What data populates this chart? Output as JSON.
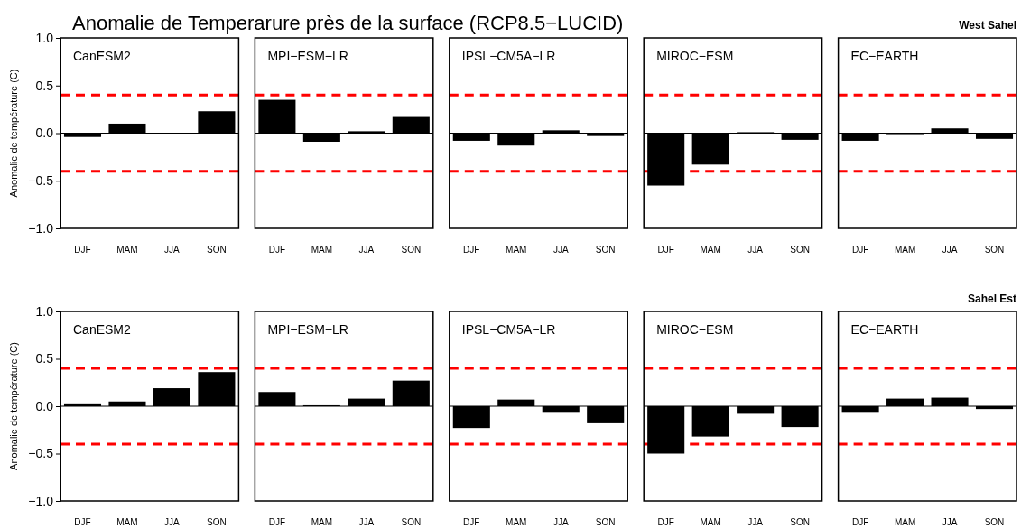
{
  "chart_data": [
    {
      "type": "bar",
      "title": "CanESM2",
      "annotations": [
        "Anomalie de Temperarure près de la surface    (RCP8.5−LUCID)"
      ],
      "ylabel": "Anomalie de température (C)",
      "categories": [
        "DJF",
        "MAM",
        "JJA",
        "SON"
      ],
      "values": [
        -0.04,
        0.1,
        0,
        0.23
      ],
      "color": "#000000",
      "ylim": [
        -1,
        1
      ],
      "yticks": [
        {
          "value": -1,
          "label": "−1.0"
        },
        {
          "value": -0.5,
          "label": "−0.5"
        },
        {
          "value": 0,
          "label": "0.0"
        },
        {
          "value": 0.5,
          "label": "0.5"
        },
        {
          "value": 1,
          "label": "1.0"
        }
      ],
      "ref_lines": [
        {
          "axis": "y",
          "value": 0.4,
          "color": "#ff0000",
          "line_style": "dashed"
        },
        {
          "axis": "y",
          "value": -0.4,
          "color": "#ff0000",
          "line_style": "dashed"
        }
      ]
    },
    {
      "type": "bar",
      "title": "MPI−ESM−LR",
      "categories": [
        "DJF",
        "MAM",
        "JJA",
        "SON"
      ],
      "values": [
        0.35,
        -0.09,
        0.02,
        0.17
      ],
      "color": "#000000",
      "ylim": [
        -1,
        1
      ],
      "tick_labels": "x",
      "ref_lines": [
        {
          "axis": "y",
          "value": 0.4,
          "color": "#ff0000",
          "line_style": "dashed"
        },
        {
          "axis": "y",
          "value": -0.4,
          "color": "#ff0000",
          "line_style": "dashed"
        }
      ]
    },
    {
      "type": "bar",
      "title": "IPSL−CM5A−LR",
      "categories": [
        "DJF",
        "MAM",
        "JJA",
        "SON"
      ],
      "values": [
        -0.08,
        -0.13,
        0.03,
        -0.03
      ],
      "color": "#000000",
      "ylim": [
        -1,
        1
      ],
      "tick_labels": "x",
      "ref_lines": [
        {
          "axis": "y",
          "value": 0.4,
          "color": "#ff0000",
          "line_style": "dashed"
        },
        {
          "axis": "y",
          "value": -0.4,
          "color": "#ff0000",
          "line_style": "dashed"
        }
      ]
    },
    {
      "type": "bar",
      "title": "MIROC−ESM",
      "categories": [
        "DJF",
        "MAM",
        "JJA",
        "SON"
      ],
      "values": [
        -0.55,
        -0.33,
        0.01,
        -0.07
      ],
      "color": "#000000",
      "ylim": [
        -1,
        1
      ],
      "tick_labels": "x",
      "ref_lines": [
        {
          "axis": "y",
          "value": 0.4,
          "color": "#ff0000",
          "line_style": "dashed"
        },
        {
          "axis": "y",
          "value": -0.4,
          "color": "#ff0000",
          "line_style": "dashed"
        }
      ]
    },
    {
      "type": "bar",
      "title": "EC−EARTH",
      "annotations": [
        "West Sahel"
      ],
      "categories": [
        "DJF",
        "MAM",
        "JJA",
        "SON"
      ],
      "values": [
        -0.08,
        -0.01,
        0.05,
        -0.06
      ],
      "color": "#000000",
      "ylim": [
        -1,
        1
      ],
      "tick_labels": "x",
      "ref_lines": [
        {
          "axis": "y",
          "value": 0.4,
          "color": "#ff0000",
          "line_style": "dashed"
        },
        {
          "axis": "y",
          "value": -0.4,
          "color": "#ff0000",
          "line_style": "dashed"
        }
      ]
    },
    {
      "type": "bar",
      "title": "CanESM2",
      "ylabel": "Anomalie de température (C)",
      "categories": [
        "DJF",
        "MAM",
        "JJA",
        "SON"
      ],
      "values": [
        0.03,
        0.05,
        0.19,
        0.36
      ],
      "color": "#000000",
      "ylim": [
        -1,
        1
      ],
      "yticks": [
        {
          "value": -1,
          "label": "−1.0"
        },
        {
          "value": -0.5,
          "label": "−0.5"
        },
        {
          "value": 0,
          "label": "0.0"
        },
        {
          "value": 0.5,
          "label": "0.5"
        },
        {
          "value": 1,
          "label": "1.0"
        }
      ],
      "ref_lines": [
        {
          "axis": "y",
          "value": 0.4,
          "color": "#ff0000",
          "line_style": "dashed"
        },
        {
          "axis": "y",
          "value": -0.4,
          "color": "#ff0000",
          "line_style": "dashed"
        }
      ]
    },
    {
      "type": "bar",
      "title": "MPI−ESM−LR",
      "categories": [
        "DJF",
        "MAM",
        "JJA",
        "SON"
      ],
      "values": [
        0.15,
        0.01,
        0.08,
        0.27
      ],
      "color": "#000000",
      "ylim": [
        -1,
        1
      ],
      "tick_labels": "x",
      "ref_lines": [
        {
          "axis": "y",
          "value": 0.4,
          "color": "#ff0000",
          "line_style": "dashed"
        },
        {
          "axis": "y",
          "value": -0.4,
          "color": "#ff0000",
          "line_style": "dashed"
        }
      ]
    },
    {
      "type": "bar",
      "title": "IPSL−CM5A−LR",
      "categories": [
        "DJF",
        "MAM",
        "JJA",
        "SON"
      ],
      "values": [
        -0.23,
        0.07,
        -0.06,
        -0.18
      ],
      "color": "#000000",
      "ylim": [
        -1,
        1
      ],
      "tick_labels": "x",
      "ref_lines": [
        {
          "axis": "y",
          "value": 0.4,
          "color": "#ff0000",
          "line_style": "dashed"
        },
        {
          "axis": "y",
          "value": -0.4,
          "color": "#ff0000",
          "line_style": "dashed"
        }
      ]
    },
    {
      "type": "bar",
      "title": "MIROC−ESM",
      "categories": [
        "DJF",
        "MAM",
        "JJA",
        "SON"
      ],
      "values": [
        -0.5,
        -0.32,
        -0.08,
        -0.22
      ],
      "color": "#000000",
      "ylim": [
        -1,
        1
      ],
      "tick_labels": "x",
      "ref_lines": [
        {
          "axis": "y",
          "value": 0.4,
          "color": "#ff0000",
          "line_style": "dashed"
        },
        {
          "axis": "y",
          "value": -0.4,
          "color": "#ff0000",
          "line_style": "dashed"
        }
      ]
    },
    {
      "type": "bar",
      "title": "EC−EARTH",
      "annotations": [
        "Sahel Est"
      ],
      "categories": [
        "DJF",
        "MAM",
        "JJA",
        "SON"
      ],
      "values": [
        -0.06,
        0.08,
        0.09,
        -0.03
      ],
      "color": "#000000",
      "ylim": [
        -1,
        1
      ],
      "tick_labels": "x",
      "ref_lines": [
        {
          "axis": "y",
          "value": 0.4,
          "color": "#ff0000",
          "line_style": "dashed"
        },
        {
          "axis": "y",
          "value": -0.4,
          "color": "#ff0000",
          "line_style": "dashed"
        }
      ]
    }
  ]
}
